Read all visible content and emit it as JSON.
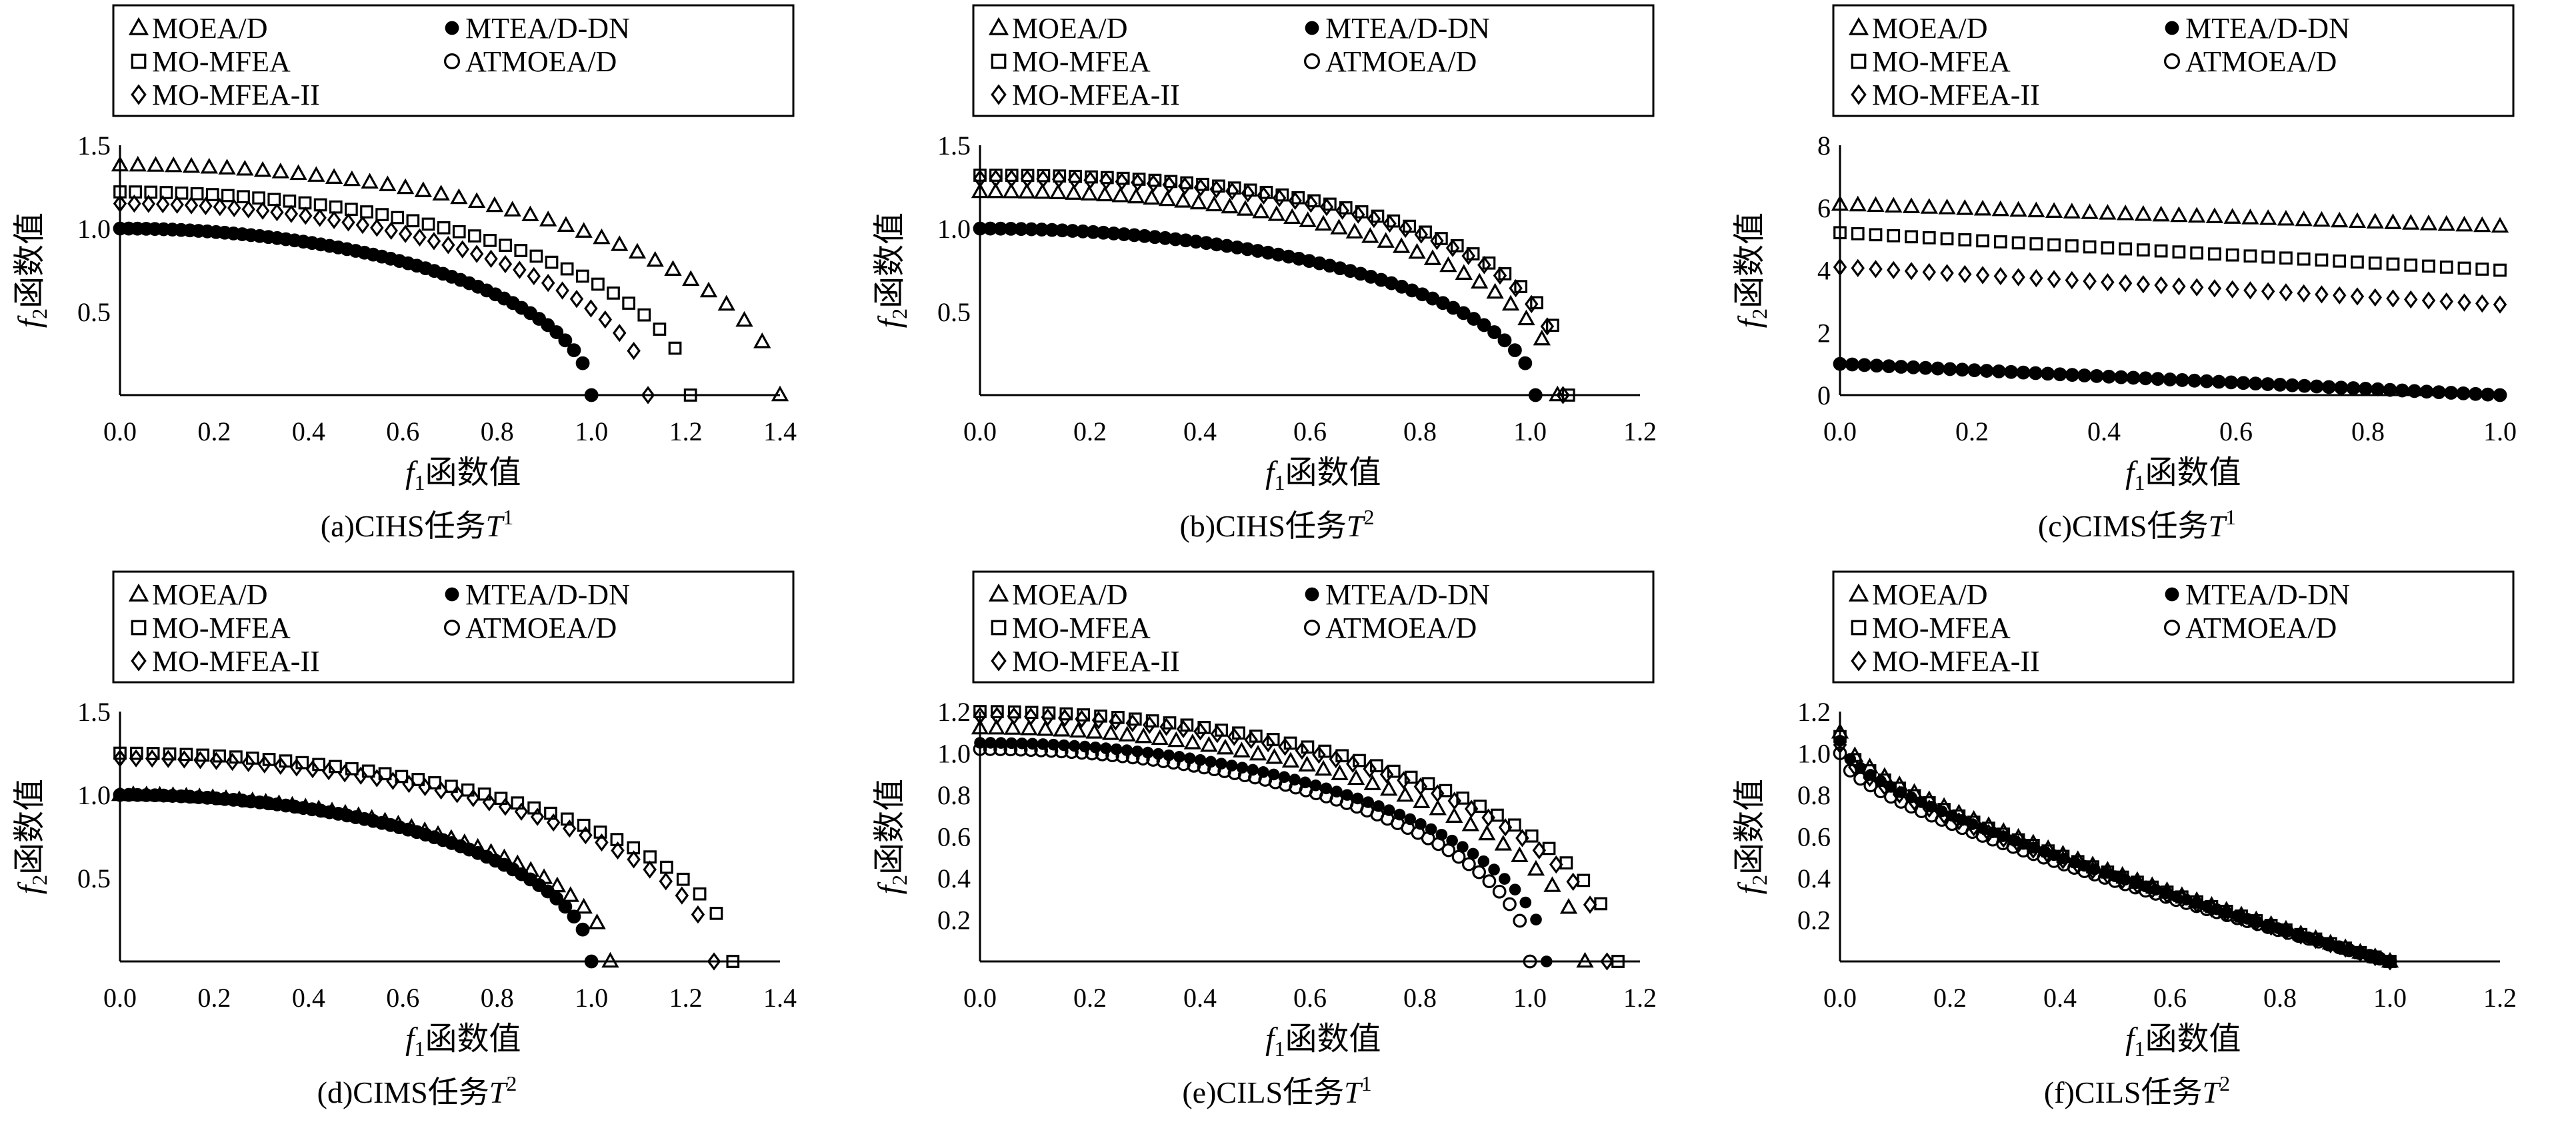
{
  "chart_data": [
    {
      "type": "scatter",
      "caption": "(a)CIHS任务T1",
      "caption_parts": {
        "prefix": "(a)CIHS任务",
        "task": "T",
        "sup": "1"
      },
      "xlabel": "f1函数值",
      "ylabel": "f2函数值",
      "xlim": [
        0,
        1.4
      ],
      "ylim": [
        0,
        1.5
      ],
      "xticks": [
        "0.0",
        "0.2",
        "0.4",
        "0.6",
        "0.8",
        "1.0",
        "1.2",
        "1.4"
      ],
      "yticks": [
        "0.5",
        "1.0",
        "1.5"
      ],
      "series": [
        {
          "name": "MOEA/D",
          "marker": "triangle",
          "shape": "arc",
          "x_start": 0.0,
          "y_start": 1.38,
          "x_end": 1.4,
          "p": 2.0
        },
        {
          "name": "MTEA/D-DN",
          "marker": "filled-circle",
          "shape": "arc",
          "x_start": 0.0,
          "y_start": 1.0,
          "x_end": 1.0,
          "p": 2.0
        },
        {
          "name": "MO-MFEA",
          "marker": "square",
          "shape": "arc",
          "x_start": 0.0,
          "y_start": 1.22,
          "x_end": 1.21,
          "p": 2.0
        },
        {
          "name": "ATMOEA/D",
          "marker": "open-circle",
          "shape": "arc",
          "x_start": 0.0,
          "y_start": 1.0,
          "x_end": 1.0,
          "p": 2.0
        },
        {
          "name": "MO-MFEA-II",
          "marker": "diamond",
          "shape": "arc",
          "x_start": 0.0,
          "y_start": 1.15,
          "x_end": 1.12,
          "p": 2.0
        }
      ],
      "legend_position": "top"
    },
    {
      "type": "scatter",
      "caption": "(b)CIHS任务T2",
      "caption_parts": {
        "prefix": "(b)CIHS任务",
        "task": "T",
        "sup": "2"
      },
      "xlabel": "f1函数值",
      "ylabel": "f2函数值",
      "xlim": [
        0,
        1.2
      ],
      "ylim": [
        0,
        1.5
      ],
      "xticks": [
        "0.0",
        "0.2",
        "0.4",
        "0.6",
        "0.8",
        "1.0",
        "1.2"
      ],
      "yticks": [
        "0.5",
        "1.0",
        "1.5"
      ],
      "series": [
        {
          "name": "MOEA/D",
          "marker": "triangle",
          "shape": "arc",
          "x_start": 0.0,
          "y_start": 1.22,
          "x_end": 1.05,
          "p": 2.2
        },
        {
          "name": "MTEA/D-DN",
          "marker": "filled-circle",
          "shape": "arc",
          "x_start": 0.0,
          "y_start": 1.0,
          "x_end": 1.01,
          "p": 2.0
        },
        {
          "name": "MO-MFEA",
          "marker": "square",
          "shape": "arc",
          "x_start": 0.0,
          "y_start": 1.32,
          "x_end": 1.07,
          "p": 2.4
        },
        {
          "name": "ATMOEA/D",
          "marker": "open-circle",
          "shape": "arc",
          "x_start": 0.0,
          "y_start": 1.0,
          "x_end": 1.01,
          "p": 2.0
        },
        {
          "name": "MO-MFEA-II",
          "marker": "diamond",
          "shape": "arc",
          "x_start": 0.0,
          "y_start": 1.3,
          "x_end": 1.06,
          "p": 2.4
        }
      ],
      "legend_position": "top"
    },
    {
      "type": "scatter",
      "caption": "(c)CIMS任务T1",
      "caption_parts": {
        "prefix": "(c)CIMS任务",
        "task": "T",
        "sup": "1"
      },
      "xlabel": "f1函数值",
      "ylabel": "f2函数值",
      "xlim": [
        0,
        1.0
      ],
      "ylim": [
        0,
        8
      ],
      "xticks": [
        "0.0",
        "0.2",
        "0.4",
        "0.6",
        "0.8",
        "1.0"
      ],
      "yticks": [
        "0",
        "2",
        "4",
        "6",
        "8"
      ],
      "series": [
        {
          "name": "MOEA/D",
          "marker": "triangle",
          "shape": "linear",
          "x_start": 0.0,
          "y_start": 6.1,
          "x_end": 1.0,
          "y_end": 5.4
        },
        {
          "name": "MTEA/D-DN",
          "marker": "filled-circle",
          "shape": "linear",
          "x_start": 0.0,
          "y_start": 1.0,
          "x_end": 1.0,
          "y_end": 0.0
        },
        {
          "name": "MO-MFEA",
          "marker": "square",
          "shape": "linear",
          "x_start": 0.0,
          "y_start": 5.2,
          "x_end": 1.0,
          "y_end": 4.0
        },
        {
          "name": "ATMOEA/D",
          "marker": "open-circle",
          "shape": "linear",
          "x_start": 0.0,
          "y_start": 1.0,
          "x_end": 1.0,
          "y_end": 0.0
        },
        {
          "name": "MO-MFEA-II",
          "marker": "diamond",
          "shape": "linear",
          "x_start": 0.0,
          "y_start": 4.1,
          "x_end": 1.0,
          "y_end": 2.9
        }
      ],
      "legend_position": "top"
    },
    {
      "type": "scatter",
      "caption": "(d)CIMS任务T2",
      "caption_parts": {
        "prefix": "(d)CIMS任务",
        "task": "T",
        "sup": "2"
      },
      "xlabel": "f1函数值",
      "ylabel": "f2函数值",
      "xlim": [
        0,
        1.4
      ],
      "ylim": [
        0,
        1.5
      ],
      "xticks": [
        "0.0",
        "0.2",
        "0.4",
        "0.6",
        "0.8",
        "1.0",
        "1.2",
        "1.4"
      ],
      "yticks": [
        "0.5",
        "1.0",
        "1.5"
      ],
      "series": [
        {
          "name": "MOEA/D",
          "marker": "triangle",
          "shape": "arc",
          "x_start": 0.0,
          "y_start": 1.0,
          "x_end": 1.04,
          "p": 2.0
        },
        {
          "name": "MTEA/D-DN",
          "marker": "filled-circle",
          "shape": "arc",
          "x_start": 0.0,
          "y_start": 1.0,
          "x_end": 1.0,
          "p": 2.0
        },
        {
          "name": "MO-MFEA",
          "marker": "square",
          "shape": "arc",
          "x_start": 0.0,
          "y_start": 1.25,
          "x_end": 1.3,
          "p": 2.0
        },
        {
          "name": "ATMOEA/D",
          "marker": "open-circle",
          "shape": "arc",
          "x_start": 0.0,
          "y_start": 1.0,
          "x_end": 1.0,
          "p": 2.0
        },
        {
          "name": "MO-MFEA-II",
          "marker": "diamond",
          "shape": "arc",
          "x_start": 0.0,
          "y_start": 1.22,
          "x_end": 1.26,
          "p": 2.0
        }
      ],
      "legend_position": "top"
    },
    {
      "type": "scatter",
      "caption": "(e)CILS任务T1",
      "caption_parts": {
        "prefix": "(e)CILS任务",
        "task": "T",
        "sup": "1"
      },
      "xlabel": "f1函数值",
      "ylabel": "f2函数值",
      "xlim": [
        0,
        1.2
      ],
      "ylim": [
        0,
        1.2
      ],
      "xticks": [
        "0.0",
        "0.2",
        "0.4",
        "0.6",
        "0.8",
        "1.0",
        "1.2"
      ],
      "yticks": [
        "0.2",
        "0.4",
        "0.6",
        "0.8",
        "1.0",
        "1.2"
      ],
      "series": [
        {
          "name": "MOEA/D",
          "marker": "triangle",
          "shape": "arc",
          "x_start": 0.0,
          "y_start": 1.12,
          "x_end": 1.1,
          "p": 2.0
        },
        {
          "name": "MTEA/D-DN",
          "marker": "filled-circle",
          "shape": "arc",
          "x_start": 0.0,
          "y_start": 1.05,
          "x_end": 1.03,
          "p": 2.0
        },
        {
          "name": "MO-MFEA",
          "marker": "square",
          "shape": "arc",
          "x_start": 0.0,
          "y_start": 1.2,
          "x_end": 1.16,
          "p": 2.0
        },
        {
          "name": "ATMOEA/D",
          "marker": "open-circle",
          "shape": "arc",
          "x_start": 0.0,
          "y_start": 1.02,
          "x_end": 1.0,
          "p": 2.0
        },
        {
          "name": "MO-MFEA-II",
          "marker": "diamond",
          "shape": "arc",
          "x_start": 0.0,
          "y_start": 1.18,
          "x_end": 1.14,
          "p": 2.0
        }
      ],
      "legend_position": "top"
    },
    {
      "type": "scatter",
      "caption": "(f)CILS任务T2",
      "caption_parts": {
        "prefix": "(f)CILS任务",
        "task": "T",
        "sup": "2"
      },
      "xlabel": "f1函数值",
      "ylabel": "f2函数值",
      "xlim": [
        0,
        1.2
      ],
      "ylim": [
        0,
        1.2
      ],
      "xticks": [
        "0.0",
        "0.2",
        "0.4",
        "0.6",
        "0.8",
        "1.0",
        "1.2"
      ],
      "yticks": [
        "0.2",
        "0.4",
        "0.6",
        "0.8",
        "1.0",
        "1.2"
      ],
      "series": [
        {
          "name": "MOEA/D",
          "marker": "triangle",
          "shape": "convex",
          "x_start": 0.0,
          "y_start": 1.1,
          "x_end": 1.0
        },
        {
          "name": "MTEA/D-DN",
          "marker": "filled-circle",
          "shape": "convex",
          "x_start": 0.0,
          "y_start": 1.06,
          "x_end": 1.0
        },
        {
          "name": "MO-MFEA",
          "marker": "square",
          "shape": "convex",
          "x_start": 0.0,
          "y_start": 1.08,
          "x_end": 1.0
        },
        {
          "name": "ATMOEA/D",
          "marker": "open-circle",
          "shape": "convex",
          "x_start": 0.0,
          "y_start": 1.0,
          "x_end": 1.0
        },
        {
          "name": "MO-MFEA-II",
          "marker": "diamond",
          "shape": "convex",
          "x_start": 0.0,
          "y_start": 1.04,
          "x_end": 1.0
        }
      ],
      "legend_position": "top"
    }
  ]
}
